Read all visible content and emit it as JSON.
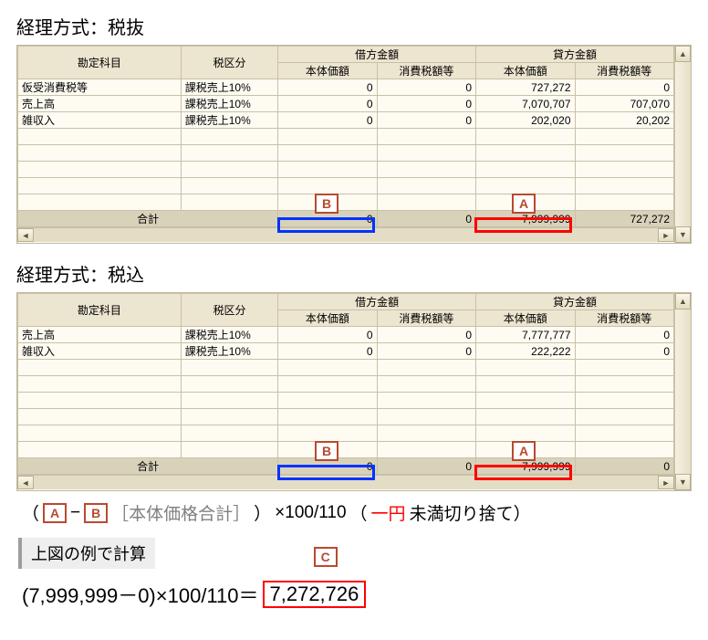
{
  "colors": {
    "calloutBorder": "#b84a2e",
    "calloutText": "#b84a2e",
    "hlBlue": "#0033ff",
    "hlRed": "#ff0000",
    "grayText": "#808080"
  },
  "section1": {
    "title": "経理方式：税抜",
    "headers": {
      "account": "勘定科目",
      "taxType": "税区分",
      "debitGroup": "借方金額",
      "creditGroup": "貸方金額",
      "base": "本体価額",
      "tax": "消費税額等"
    },
    "rows": [
      {
        "acc": "仮受消費税等",
        "tax": "課税売上10%",
        "db": "0",
        "dt": "0",
        "cb": "727,272",
        "ct": "0"
      },
      {
        "acc": "売上高",
        "tax": "課税売上10%",
        "db": "0",
        "dt": "0",
        "cb": "7,070,707",
        "ct": "707,070"
      },
      {
        "acc": "雑収入",
        "tax": "課税売上10%",
        "db": "0",
        "dt": "0",
        "cb": "202,020",
        "ct": "20,202"
      }
    ],
    "sum": {
      "label": "合計",
      "db": "0",
      "dt": "0",
      "cb": "7,999,999",
      "ct": "727,272"
    },
    "letters": {
      "left": "B",
      "right": "A"
    }
  },
  "section2": {
    "title": "経理方式：税込",
    "rows": [
      {
        "acc": "売上高",
        "tax": "課税売上10%",
        "db": "0",
        "dt": "0",
        "cb": "7,777,777",
        "ct": "0"
      },
      {
        "acc": "雑収入",
        "tax": "課税売上10%",
        "db": "0",
        "dt": "0",
        "cb": "222,222",
        "ct": "0"
      }
    ],
    "sum": {
      "label": "合計",
      "db": "0",
      "dt": "0",
      "cb": "7,999,999",
      "ct": "0"
    },
    "letters": {
      "left": "B",
      "right": "A"
    }
  },
  "formula": {
    "open": "（",
    "a": "A",
    "minus": "−",
    "b": "B",
    "note": "［本体価格合計］",
    "close": "）",
    "times": "×100/110",
    "roundOpen": "（",
    "roundRed": "一円",
    "roundRest": "未満切り捨て）"
  },
  "example": {
    "heading": "上図の例で計算",
    "cLabel": "C",
    "expr": "(7,999,999－0)×100/110＝",
    "result": "7,272,726"
  }
}
